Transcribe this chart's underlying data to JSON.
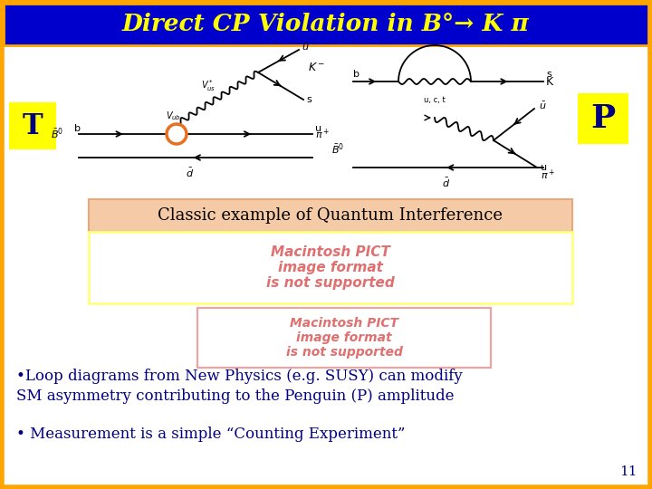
{
  "title": "Direct CP Violation in B°→ K π",
  "title_bg": "#0000CC",
  "title_fg": "#FFFF00",
  "title_border": "#FFA500",
  "slide_bg": "#FFFFFF",
  "label_T": "T",
  "label_P": "P",
  "label_bg": "#FFFF00",
  "label_text_color": "#000080",
  "classic_text": "Classic example of Quantum Interference",
  "classic_bg": "#F5CBA7",
  "classic_border": "#E8A87C",
  "bullet1_line1": "•Loop diagrams from New Physics (e.g. SUSY) can modify",
  "bullet1_line2": "SM asymmetry contributing to the Penguin (P) amplitude",
  "bullet2": "• Measurement is a simple “Counting Experiment”",
  "page_num": "11",
  "text_color": "#000080",
  "pict_text": "Macintosh PICT\nimage format\nis not supported",
  "pict1_border": "#FFFF80",
  "pict2_border": "#F5A0A0",
  "pict_bg": "#FFFFFF",
  "pict_text_color": "#E07070"
}
